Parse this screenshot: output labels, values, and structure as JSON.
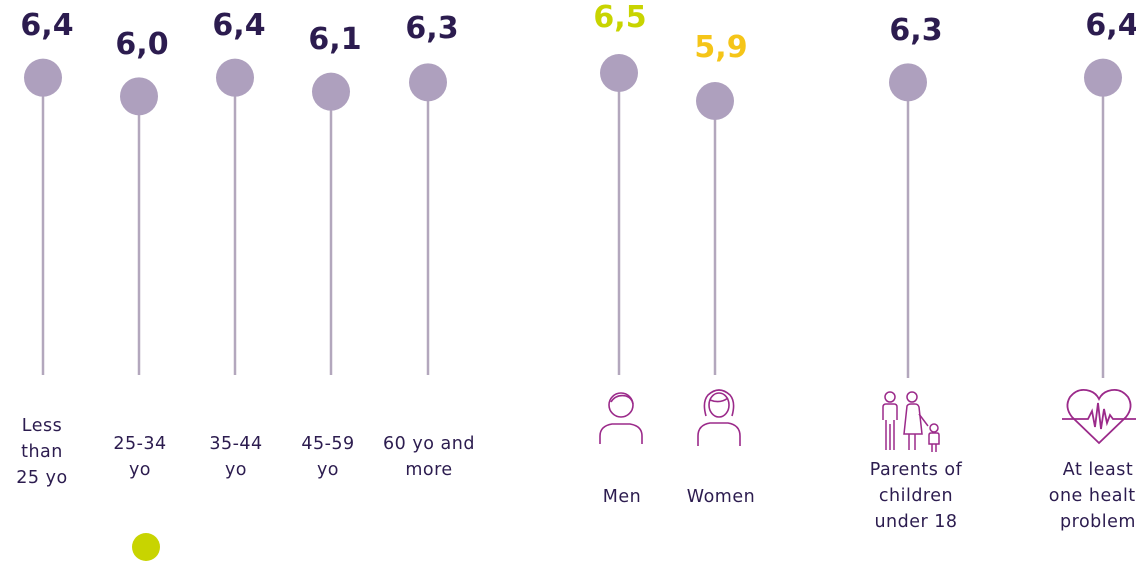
{
  "colors": {
    "stem": "#b3a7bd",
    "dot": "#aea0be",
    "value_default": "#2c1c4f",
    "value_men": "#c8d400",
    "value_women": "#f5c518",
    "icon": "#9b2a8a",
    "label": "#2c1c4f"
  },
  "chart_data": {
    "type": "lollipop",
    "series": [
      {
        "group": "age",
        "categories": [
          "Less than 25 yo",
          "25-34 yo",
          "35-44 yo",
          "45-59 yo",
          "60 yo and more"
        ],
        "values": [
          6.4,
          6.0,
          6.4,
          6.1,
          6.3
        ],
        "value_labels": [
          "6,4",
          "6,0",
          "6,4",
          "6,1",
          "6,3"
        ]
      },
      {
        "group": "gender",
        "categories": [
          "Men",
          "Women"
        ],
        "values": [
          6.5,
          5.9
        ],
        "value_labels": [
          "6,5",
          "5,9"
        ]
      },
      {
        "group": "other",
        "categories": [
          "Parents of children under 18",
          "At least one health problem"
        ],
        "values": [
          6.3,
          6.4
        ],
        "value_labels": [
          "6,3",
          "6,4"
        ]
      }
    ]
  },
  "items": [
    {
      "label": "Less\nthan\n25 yo",
      "value": "6,4",
      "icon": ""
    },
    {
      "label": "25-34\nyo",
      "value": "6,0",
      "icon": ""
    },
    {
      "label": "35-44\nyo",
      "value": "6,4",
      "icon": ""
    },
    {
      "label": "45-59\nyo",
      "value": "6,1",
      "icon": ""
    },
    {
      "label": "60 yo and\nmore",
      "value": "6,3",
      "icon": ""
    },
    {
      "label": "Men",
      "value": "6,5",
      "icon": "man-icon"
    },
    {
      "label": "Women",
      "value": "5,9",
      "icon": "woman-icon"
    },
    {
      "label": "Parents of\nchildren\nunder 18",
      "value": "6,3",
      "icon": "family-icon"
    },
    {
      "label": "At least\none health\nproblem",
      "value": "6,4",
      "icon": "heart-pulse-icon"
    }
  ]
}
